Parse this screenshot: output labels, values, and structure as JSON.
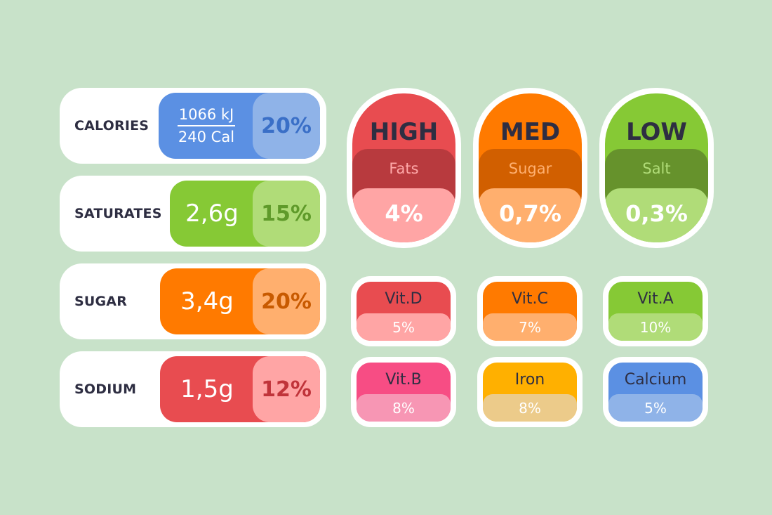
{
  "rows": [
    {
      "label": "CALORIES",
      "amount_top": "1066 kJ",
      "amount_bottom": "240 Cal",
      "percent": "20%",
      "color": "#5b90e3",
      "light": "#8fb3e8",
      "pct_text": "#3a6fc7"
    },
    {
      "label": "SATURATES",
      "amount": "2,6g",
      "percent": "15%",
      "color": "#86c935",
      "light": "#b0dc78",
      "pct_text": "#5f9a2a"
    },
    {
      "label": "SUGAR",
      "amount": "3,4g",
      "percent": "20%",
      "color": "#ff7a00",
      "light": "#ffaf6e",
      "pct_text": "#c85a00"
    },
    {
      "label": "SODIUM",
      "amount": "1,5g",
      "percent": "12%",
      "color": "#e84c50",
      "light": "#ffa5a5",
      "pct_text": "#c0343a"
    }
  ],
  "badges": [
    {
      "level": "HIGH",
      "nutrient": "Fats",
      "value": "4%",
      "color": "#e84c50",
      "mid": "#b83a3e",
      "mid_text": "#ffa9a9",
      "light": "#ffa5a5"
    },
    {
      "level": "MED",
      "nutrient": "Sugar",
      "value": "0,7%",
      "color": "#ff7a00",
      "mid": "#d15f00",
      "mid_text": "#ffb070",
      "light": "#ffaf6e"
    },
    {
      "level": "LOW",
      "nutrient": "Salt",
      "value": "0,3%",
      "color": "#86c935",
      "mid": "#66922c",
      "mid_text": "#b0dc78",
      "light": "#b0dc78"
    }
  ],
  "vitamins": [
    {
      "name": "Vit.D",
      "value": "5%",
      "color": "#e84c50",
      "light": "#ffa5a5"
    },
    {
      "name": "Vit.C",
      "value": "7%",
      "color": "#ff7a00",
      "light": "#ffaf6e"
    },
    {
      "name": "Vit.A",
      "value": "10%",
      "color": "#86c935",
      "light": "#b0dc78"
    },
    {
      "name": "Vit.B",
      "value": "8%",
      "color": "#f74d84",
      "light": "#f796b4"
    },
    {
      "name": "Iron",
      "value": "8%",
      "color": "#ffb000",
      "light": "#eccb8a"
    },
    {
      "name": "Calcium",
      "value": "5%",
      "color": "#5b90e3",
      "light": "#8fb3e8"
    }
  ]
}
